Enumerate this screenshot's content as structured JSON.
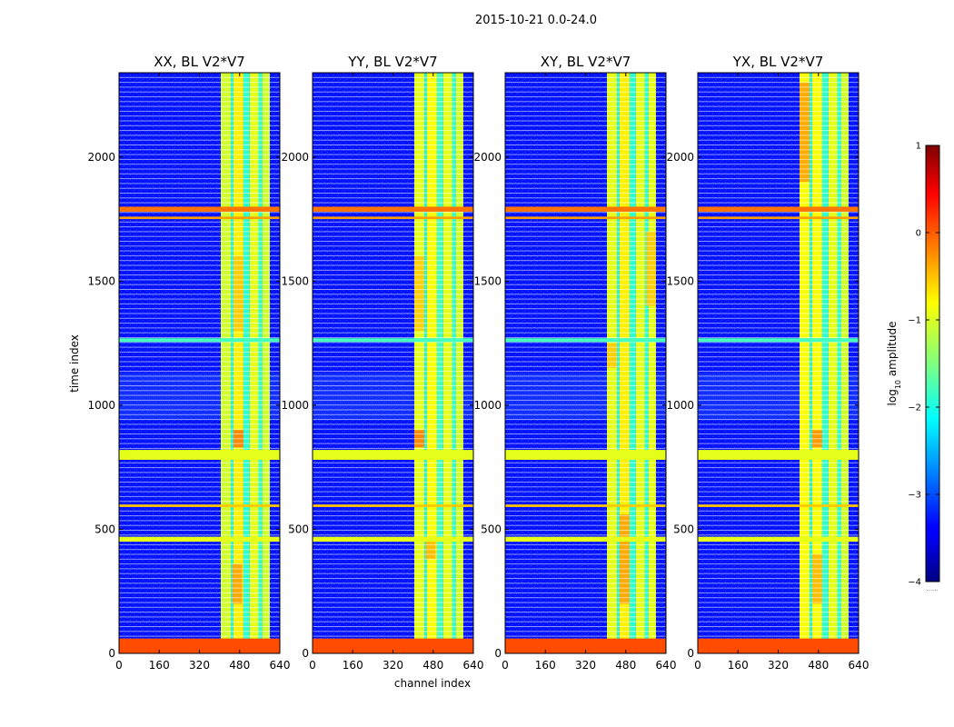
{
  "figure": {
    "suptitle": "2015-10-21 0.0-24.0",
    "xlabel": "channel index",
    "ylabel": "time index",
    "colorbar_label_prefix": "log",
    "colorbar_label_sub": "10",
    "colorbar_label_suffix": " amplitude",
    "colorbar_extra_label": "......"
  },
  "chart_data": [
    {
      "type": "heatmap",
      "title": "XX, BL V2*V7",
      "xlabel": "channel index",
      "ylabel": "time index",
      "xlim": [
        0,
        640
      ],
      "ylim": [
        0,
        2340
      ],
      "xticks": [
        0,
        160,
        320,
        480,
        640
      ],
      "yticks": [
        0,
        500,
        1000,
        1500,
        2000
      ],
      "background_log10_amplitude": -3.3,
      "high_channel_bands": [
        [
          405,
          445,
          -1.1
        ],
        [
          445,
          455,
          -2.0
        ],
        [
          455,
          495,
          -0.8
        ],
        [
          495,
          520,
          -1.9
        ],
        [
          520,
          555,
          -1.0
        ],
        [
          555,
          570,
          -1.9
        ],
        [
          570,
          600,
          -1.1
        ]
      ],
      "hot_patches": [
        [
          455,
          495,
          830,
          900,
          -0.2
        ],
        [
          450,
          490,
          200,
          360,
          -0.4
        ],
        [
          455,
          495,
          1300,
          1600,
          -0.6
        ]
      ],
      "flagged_rows": [
        [
          0,
          60,
          0.0
        ],
        [
          780,
          820,
          -1.0
        ],
        [
          450,
          470,
          -1.0
        ],
        [
          1780,
          1800,
          -0.2
        ],
        [
          1750,
          1760,
          -0.4
        ],
        [
          590,
          600,
          -0.6
        ],
        [
          1255,
          1270,
          -1.8
        ]
      ]
    },
    {
      "type": "heatmap",
      "title": "YY, BL V2*V7",
      "xlabel": "channel index",
      "ylabel": "time index",
      "xlim": [
        0,
        640
      ],
      "ylim": [
        0,
        2340
      ],
      "xticks": [
        0,
        160,
        320,
        480,
        640
      ],
      "yticks": [
        0,
        500,
        1000,
        1500,
        2000
      ],
      "background_log10_amplitude": -3.3,
      "high_channel_bands": [
        [
          405,
          445,
          -1.0
        ],
        [
          445,
          455,
          -2.0
        ],
        [
          455,
          495,
          -0.9
        ],
        [
          495,
          520,
          -1.8
        ],
        [
          520,
          555,
          -1.0
        ],
        [
          555,
          570,
          -1.9
        ],
        [
          570,
          600,
          -1.1
        ]
      ],
      "hot_patches": [
        [
          405,
          445,
          830,
          900,
          -0.2
        ],
        [
          405,
          445,
          1300,
          1600,
          -0.6
        ],
        [
          450,
          490,
          380,
          460,
          -0.5
        ]
      ],
      "flagged_rows": [
        [
          0,
          60,
          0.0
        ],
        [
          780,
          820,
          -1.0
        ],
        [
          450,
          470,
          -1.0
        ],
        [
          1780,
          1800,
          -0.2
        ],
        [
          1750,
          1760,
          -0.4
        ],
        [
          590,
          600,
          -0.6
        ],
        [
          1255,
          1270,
          -1.8
        ]
      ]
    },
    {
      "type": "heatmap",
      "title": "XY, BL V2*V7",
      "xlabel": "channel index",
      "ylabel": "time index",
      "xlim": [
        0,
        640
      ],
      "ylim": [
        0,
        2340
      ],
      "xticks": [
        0,
        160,
        320,
        480,
        640
      ],
      "yticks": [
        0,
        500,
        1000,
        1500,
        2000
      ],
      "background_log10_amplitude": -3.3,
      "high_channel_bands": [
        [
          405,
          445,
          -1.0
        ],
        [
          445,
          455,
          -2.0
        ],
        [
          455,
          495,
          -0.8
        ],
        [
          495,
          520,
          -1.9
        ],
        [
          520,
          555,
          -1.0
        ],
        [
          555,
          570,
          -1.9
        ],
        [
          570,
          600,
          -1.0
        ]
      ],
      "hot_patches": [
        [
          455,
          495,
          200,
          560,
          -0.4
        ],
        [
          560,
          600,
          1400,
          1700,
          -0.6
        ],
        [
          405,
          445,
          1150,
          1250,
          -0.6
        ]
      ],
      "flagged_rows": [
        [
          0,
          60,
          0.0
        ],
        [
          780,
          820,
          -1.0
        ],
        [
          450,
          470,
          -1.0
        ],
        [
          1780,
          1800,
          -0.2
        ],
        [
          1750,
          1760,
          -0.4
        ],
        [
          590,
          600,
          -0.6
        ],
        [
          1255,
          1270,
          -1.8
        ]
      ]
    },
    {
      "type": "heatmap",
      "title": "YX, BL V2*V7",
      "xlabel": "channel index",
      "ylabel": "time index",
      "xlim": [
        0,
        640
      ],
      "ylim": [
        0,
        2340
      ],
      "xticks": [
        0,
        160,
        320,
        480,
        640
      ],
      "yticks": [
        0,
        500,
        1000,
        1500,
        2000
      ],
      "background_log10_amplitude": -3.3,
      "high_channel_bands": [
        [
          405,
          445,
          -0.9
        ],
        [
          445,
          455,
          -2.0
        ],
        [
          455,
          495,
          -0.9
        ],
        [
          495,
          520,
          -1.9
        ],
        [
          520,
          555,
          -1.0
        ],
        [
          555,
          570,
          -1.9
        ],
        [
          570,
          600,
          -1.1
        ]
      ],
      "hot_patches": [
        [
          405,
          445,
          1900,
          2300,
          -0.4
        ],
        [
          455,
          495,
          830,
          900,
          -0.3
        ],
        [
          455,
          495,
          200,
          400,
          -0.5
        ]
      ],
      "flagged_rows": [
        [
          0,
          60,
          0.0
        ],
        [
          780,
          820,
          -1.0
        ],
        [
          450,
          470,
          -1.0
        ],
        [
          1780,
          1800,
          -0.2
        ],
        [
          1750,
          1760,
          -0.4
        ],
        [
          590,
          600,
          -0.6
        ],
        [
          1255,
          1270,
          -1.8
        ]
      ]
    },
    {
      "type": "colorbar",
      "title": "log10 amplitude",
      "colormap": "jet",
      "range": [
        -4,
        1
      ],
      "ticks": [
        1,
        0,
        -1,
        -2,
        -3,
        -4
      ],
      "tick_labels": [
        "1",
        "0",
        "−1",
        "−2",
        "−3",
        "−4"
      ]
    }
  ]
}
